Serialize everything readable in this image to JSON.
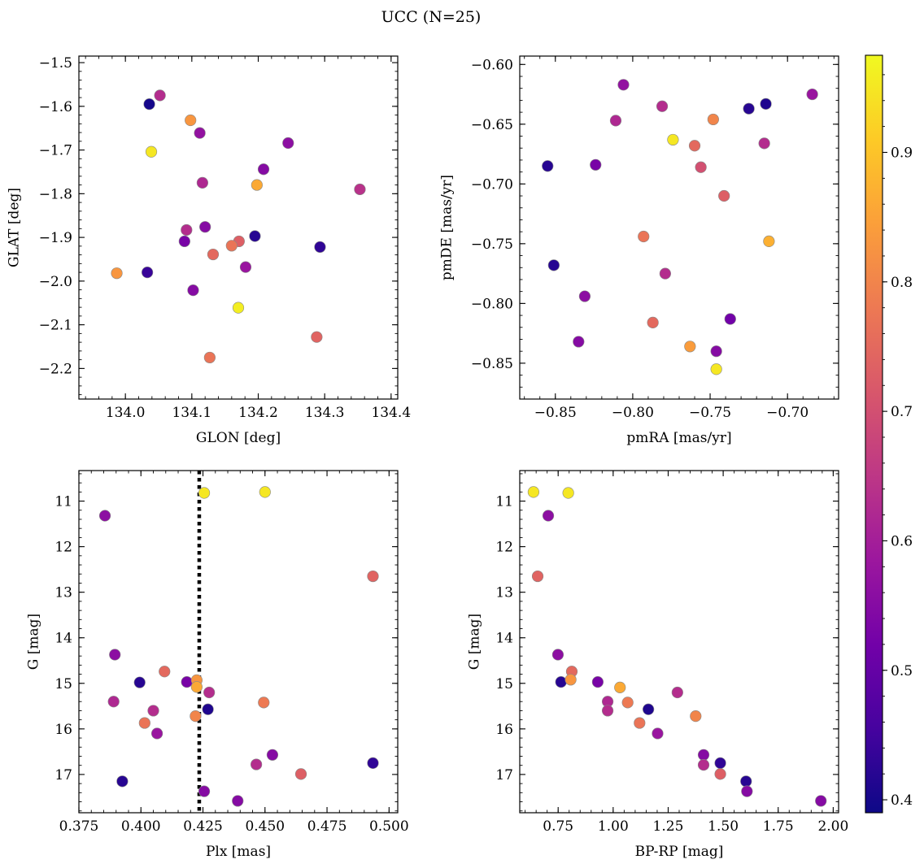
{
  "title": "UCC (N=25)",
  "colors": {
    "colormap": [
      "#0d0887",
      "#46039f",
      "#7201a8",
      "#9c179e",
      "#bd3786",
      "#d8576b",
      "#ed7953",
      "#fb9f3a",
      "#fdca26",
      "#f0f921"
    ],
    "vline": "#000000",
    "marker_edge": "#888888"
  },
  "chart_data": [
    {
      "type": "scatter",
      "xlabel": "GLON [deg]",
      "ylabel": "GLAT [deg]",
      "xlim": [
        133.93,
        134.41
      ],
      "ylim": [
        -2.27,
        -1.485
      ],
      "xticks": [
        134.0,
        134.1,
        134.2,
        134.3,
        134.4
      ],
      "xtick_labels": [
        "134.0",
        "134.1",
        "134.2",
        "134.3",
        "134.4"
      ],
      "yticks": [
        -1.5,
        -1.6,
        -1.7,
        -1.8,
        -1.9,
        -2.0,
        -2.1,
        -2.2
      ],
      "ytick_labels": [
        "−1.5",
        "−1.6",
        "−1.7",
        "−1.8",
        "−1.9",
        "−2.0",
        "−2.1",
        "−2.2"
      ],
      "points": [
        {
          "x": 134.036,
          "y": -1.595,
          "c": 0.4
        },
        {
          "x": 134.052,
          "y": -1.575,
          "c": 0.63
        },
        {
          "x": 134.098,
          "y": -1.632,
          "c": 0.83
        },
        {
          "x": 134.112,
          "y": -1.661,
          "c": 0.57
        },
        {
          "x": 134.039,
          "y": -1.704,
          "c": 0.95
        },
        {
          "x": 134.245,
          "y": -1.684,
          "c": 0.56
        },
        {
          "x": 134.208,
          "y": -1.744,
          "c": 0.55
        },
        {
          "x": 134.116,
          "y": -1.775,
          "c": 0.62
        },
        {
          "x": 134.198,
          "y": -1.78,
          "c": 0.86
        },
        {
          "x": 134.353,
          "y": -1.79,
          "c": 0.64
        },
        {
          "x": 134.092,
          "y": -1.883,
          "c": 0.63
        },
        {
          "x": 134.12,
          "y": -1.876,
          "c": 0.55
        },
        {
          "x": 134.089,
          "y": -1.909,
          "c": 0.53
        },
        {
          "x": 134.195,
          "y": -1.897,
          "c": 0.42
        },
        {
          "x": 134.171,
          "y": -1.909,
          "c": 0.73
        },
        {
          "x": 134.16,
          "y": -1.919,
          "c": 0.77
        },
        {
          "x": 134.293,
          "y": -1.922,
          "c": 0.43
        },
        {
          "x": 134.132,
          "y": -1.939,
          "c": 0.75
        },
        {
          "x": 134.181,
          "y": -1.968,
          "c": 0.58
        },
        {
          "x": 133.987,
          "y": -1.982,
          "c": 0.83
        },
        {
          "x": 134.033,
          "y": -1.98,
          "c": 0.44
        },
        {
          "x": 134.102,
          "y": -2.021,
          "c": 0.55
        },
        {
          "x": 134.17,
          "y": -2.061,
          "c": 0.96
        },
        {
          "x": 134.288,
          "y": -2.128,
          "c": 0.74
        },
        {
          "x": 134.127,
          "y": -2.175,
          "c": 0.77
        }
      ]
    },
    {
      "type": "scatter",
      "xlabel": "pmRA [mas/yr]",
      "ylabel": "pmDE [mas/yr]",
      "xlim": [
        -0.873,
        -0.667
      ],
      "ylim": [
        -0.88,
        -0.593
      ],
      "xticks": [
        -0.85,
        -0.8,
        -0.75,
        -0.7
      ],
      "xtick_labels": [
        "−0.85",
        "−0.80",
        "−0.75",
        "−0.70"
      ],
      "yticks": [
        -0.6,
        -0.65,
        -0.7,
        -0.75,
        -0.8,
        -0.85
      ],
      "ytick_labels": [
        "−0.60",
        "−0.65",
        "−0.70",
        "−0.75",
        "−0.80",
        "−0.85"
      ],
      "points": [
        {
          "x": -0.806,
          "y": -0.617,
          "c": 0.57
        },
        {
          "x": -0.684,
          "y": -0.625,
          "c": 0.58
        },
        {
          "x": -0.781,
          "y": -0.635,
          "c": 0.63
        },
        {
          "x": -0.725,
          "y": -0.637,
          "c": 0.42
        },
        {
          "x": -0.714,
          "y": -0.633,
          "c": 0.41
        },
        {
          "x": -0.811,
          "y": -0.647,
          "c": 0.62
        },
        {
          "x": -0.748,
          "y": -0.646,
          "c": 0.8
        },
        {
          "x": -0.774,
          "y": -0.663,
          "c": 0.95
        },
        {
          "x": -0.76,
          "y": -0.668,
          "c": 0.75
        },
        {
          "x": -0.715,
          "y": -0.666,
          "c": 0.63
        },
        {
          "x": -0.855,
          "y": -0.685,
          "c": 0.42
        },
        {
          "x": -0.824,
          "y": -0.684,
          "c": 0.53
        },
        {
          "x": -0.756,
          "y": -0.686,
          "c": 0.7
        },
        {
          "x": -0.741,
          "y": -0.71,
          "c": 0.73
        },
        {
          "x": -0.793,
          "y": -0.744,
          "c": 0.77
        },
        {
          "x": -0.712,
          "y": -0.748,
          "c": 0.87
        },
        {
          "x": -0.851,
          "y": -0.768,
          "c": 0.42
        },
        {
          "x": -0.779,
          "y": -0.775,
          "c": 0.63
        },
        {
          "x": -0.831,
          "y": -0.794,
          "c": 0.56
        },
        {
          "x": -0.737,
          "y": -0.813,
          "c": 0.52
        },
        {
          "x": -0.787,
          "y": -0.816,
          "c": 0.75
        },
        {
          "x": -0.835,
          "y": -0.832,
          "c": 0.55
        },
        {
          "x": -0.763,
          "y": -0.836,
          "c": 0.84
        },
        {
          "x": -0.746,
          "y": -0.84,
          "c": 0.55
        },
        {
          "x": -0.746,
          "y": -0.855,
          "c": 0.95
        }
      ]
    },
    {
      "type": "scatter",
      "xlabel": "Plx [mas]",
      "ylabel": "G [mag]",
      "xlim": [
        0.375,
        0.5035
      ],
      "ylim": [
        17.84,
        10.33
      ],
      "xticks": [
        0.375,
        0.4,
        0.425,
        0.45,
        0.475,
        0.5
      ],
      "xtick_labels": [
        "0.375",
        "0.400",
        "0.425",
        "0.450",
        "0.475",
        "0.500"
      ],
      "yticks": [
        11,
        12,
        13,
        14,
        15,
        16,
        17
      ],
      "ytick_labels": [
        "11",
        "12",
        "13",
        "14",
        "15",
        "16",
        "17"
      ],
      "vline": 0.4235,
      "points": [
        {
          "x": 0.4255,
          "y": 10.82,
          "c": 0.95
        },
        {
          "x": 0.45,
          "y": 10.8,
          "c": 0.95
        },
        {
          "x": 0.3855,
          "y": 11.32,
          "c": 0.56
        },
        {
          "x": 0.4935,
          "y": 12.65,
          "c": 0.74
        },
        {
          "x": 0.3895,
          "y": 14.37,
          "c": 0.56
        },
        {
          "x": 0.4095,
          "y": 14.74,
          "c": 0.75
        },
        {
          "x": 0.4185,
          "y": 14.97,
          "c": 0.53
        },
        {
          "x": 0.4225,
          "y": 14.93,
          "c": 0.83
        },
        {
          "x": 0.3995,
          "y": 14.98,
          "c": 0.42
        },
        {
          "x": 0.4225,
          "y": 15.08,
          "c": 0.86
        },
        {
          "x": 0.4275,
          "y": 15.2,
          "c": 0.63
        },
        {
          "x": 0.389,
          "y": 15.4,
          "c": 0.62
        },
        {
          "x": 0.4495,
          "y": 15.42,
          "c": 0.78
        },
        {
          "x": 0.427,
          "y": 15.57,
          "c": 0.41
        },
        {
          "x": 0.405,
          "y": 15.6,
          "c": 0.63
        },
        {
          "x": 0.422,
          "y": 15.72,
          "c": 0.8
        },
        {
          "x": 0.4015,
          "y": 15.87,
          "c": 0.77
        },
        {
          "x": 0.4065,
          "y": 16.1,
          "c": 0.58
        },
        {
          "x": 0.453,
          "y": 16.57,
          "c": 0.55
        },
        {
          "x": 0.4465,
          "y": 16.78,
          "c": 0.63
        },
        {
          "x": 0.4935,
          "y": 16.75,
          "c": 0.43
        },
        {
          "x": 0.4645,
          "y": 16.99,
          "c": 0.73
        },
        {
          "x": 0.3925,
          "y": 17.15,
          "c": 0.42
        },
        {
          "x": 0.4255,
          "y": 17.37,
          "c": 0.55
        },
        {
          "x": 0.439,
          "y": 17.58,
          "c": 0.55
        }
      ]
    },
    {
      "type": "scatter",
      "xlabel": "BP-RP [mag]",
      "ylabel": "G [mag]",
      "xlim": [
        0.5755,
        2.0245
      ],
      "ylim": [
        17.84,
        10.33
      ],
      "xticks": [
        0.75,
        1.0,
        1.25,
        1.5,
        1.75,
        2.0
      ],
      "xtick_labels": [
        "0.75",
        "1.00",
        "1.25",
        "1.50",
        "1.75",
        "2.00"
      ],
      "yticks": [
        11,
        12,
        13,
        14,
        15,
        16,
        17
      ],
      "ytick_labels": [
        "11",
        "12",
        "13",
        "14",
        "15",
        "16",
        "17"
      ],
      "points": [
        {
          "x": 0.638,
          "y": 10.8,
          "c": 0.95
        },
        {
          "x": 0.796,
          "y": 10.82,
          "c": 0.95
        },
        {
          "x": 0.705,
          "y": 11.32,
          "c": 0.56
        },
        {
          "x": 0.657,
          "y": 12.65,
          "c": 0.74
        },
        {
          "x": 0.749,
          "y": 14.37,
          "c": 0.56
        },
        {
          "x": 0.763,
          "y": 14.97,
          "c": 0.42
        },
        {
          "x": 0.812,
          "y": 14.74,
          "c": 0.75
        },
        {
          "x": 0.807,
          "y": 14.92,
          "c": 0.83
        },
        {
          "x": 0.93,
          "y": 14.97,
          "c": 0.53
        },
        {
          "x": 1.031,
          "y": 15.09,
          "c": 0.86
        },
        {
          "x": 0.975,
          "y": 15.4,
          "c": 0.62
        },
        {
          "x": 1.066,
          "y": 15.42,
          "c": 0.78
        },
        {
          "x": 0.975,
          "y": 15.6,
          "c": 0.63
        },
        {
          "x": 1.16,
          "y": 15.57,
          "c": 0.41
        },
        {
          "x": 1.292,
          "y": 15.2,
          "c": 0.63
        },
        {
          "x": 1.12,
          "y": 15.87,
          "c": 0.77
        },
        {
          "x": 1.375,
          "y": 15.72,
          "c": 0.8
        },
        {
          "x": 1.202,
          "y": 16.1,
          "c": 0.58
        },
        {
          "x": 1.411,
          "y": 16.57,
          "c": 0.55
        },
        {
          "x": 1.411,
          "y": 16.79,
          "c": 0.63
        },
        {
          "x": 1.487,
          "y": 16.75,
          "c": 0.43
        },
        {
          "x": 1.487,
          "y": 16.99,
          "c": 0.73
        },
        {
          "x": 1.604,
          "y": 17.15,
          "c": 0.42
        },
        {
          "x": 1.608,
          "y": 17.37,
          "c": 0.55
        },
        {
          "x": 1.944,
          "y": 17.58,
          "c": 0.55
        }
      ]
    }
  ],
  "colorbar": {
    "range": [
      0.39,
      0.975
    ],
    "ticks": [
      0.4,
      0.5,
      0.6,
      0.7,
      0.8,
      0.9
    ],
    "tick_labels": [
      "0.4",
      "0.5",
      "0.6",
      "0.7",
      "0.8",
      "0.9"
    ]
  }
}
